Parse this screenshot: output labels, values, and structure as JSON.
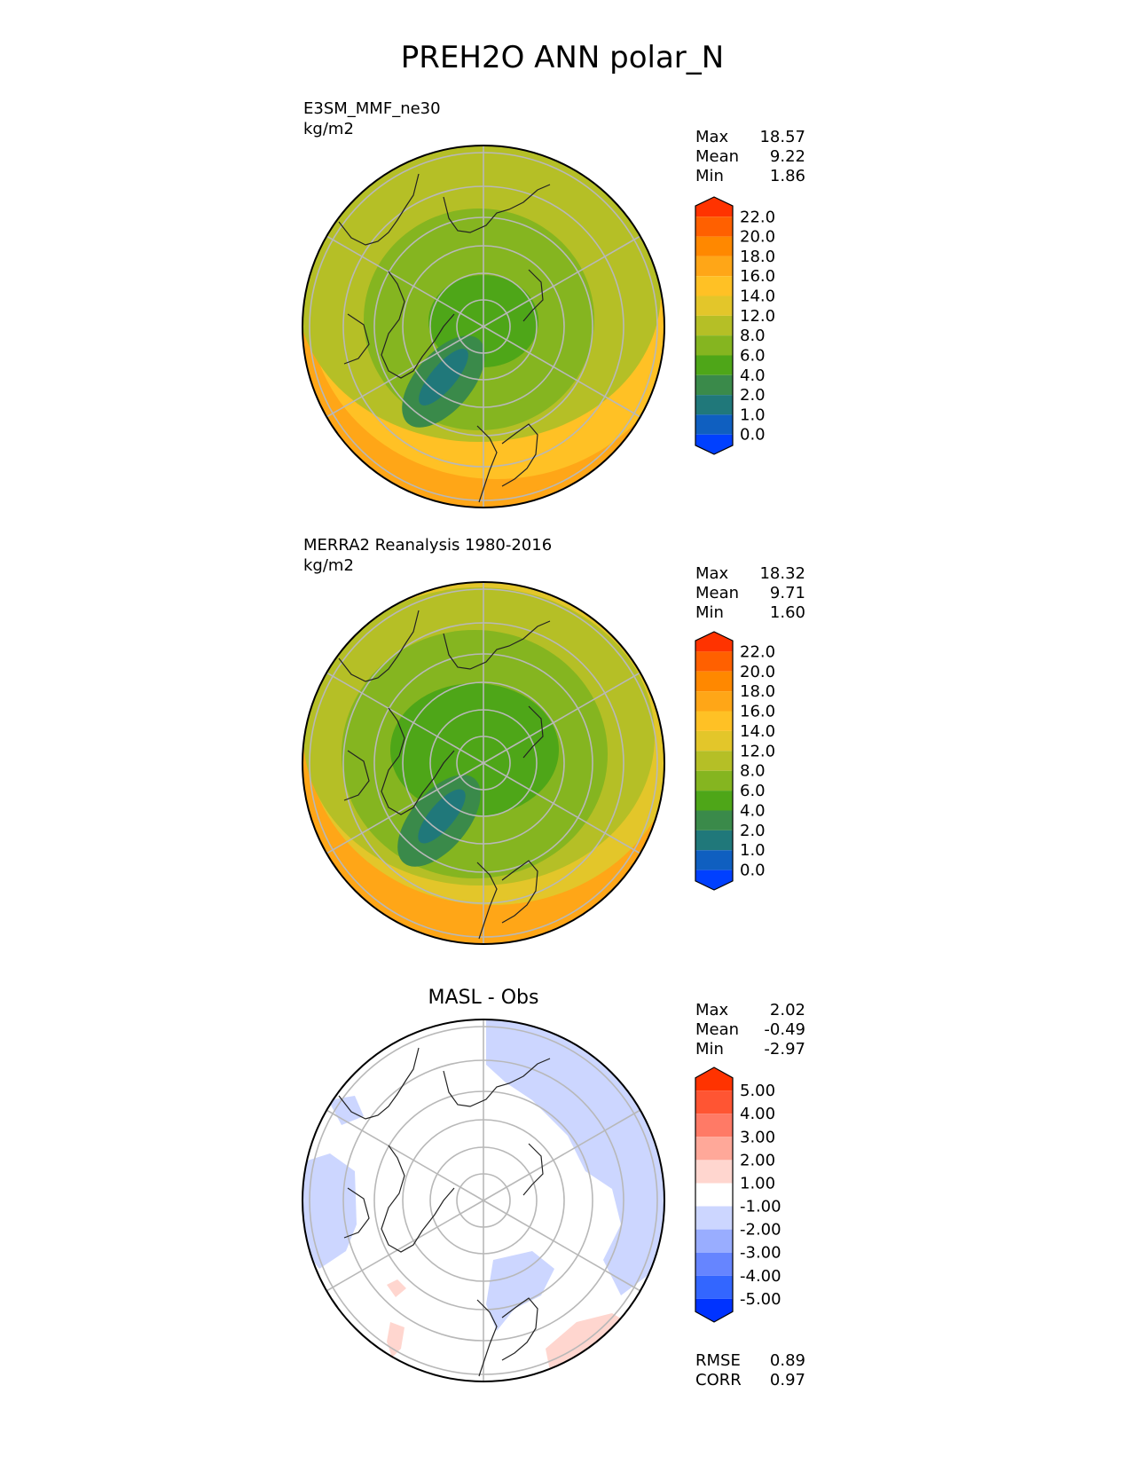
{
  "title": "PREH2O ANN polar_N",
  "chart_data": [
    {
      "type": "heatmap",
      "projection": "north polar stereographic",
      "name": "E3SM_MMF_ne30",
      "units": "kg/m2",
      "stats": [
        {
          "label": "Max",
          "value": "18.57"
        },
        {
          "label": "Mean",
          "value": "9.22"
        },
        {
          "label": "Min",
          "value": "1.86"
        }
      ],
      "colorbar_levels": [
        "22.0",
        "20.0",
        "18.0",
        "16.0",
        "14.0",
        "12.0",
        "8.0",
        "6.0",
        "4.0",
        "2.0",
        "1.0",
        "0.0"
      ],
      "colorbar_colors": [
        "#ff3300",
        "#ff6000",
        "#ff8800",
        "#ffa617",
        "#ffc125",
        "#e3c62a",
        "#b5bf26",
        "#85b520",
        "#4ea618",
        "#3a8a4a",
        "#20787a",
        "#0f5fc0",
        "#0040ff"
      ],
      "field_colors": {
        "outer": "#ffa617",
        "belt": "#ffc125",
        "mid": "#b5bf26",
        "inner": "#85b520",
        "core": "#4ea618",
        "greenland": "#3a8a4a",
        "greenland_core": "#20787a"
      }
    },
    {
      "type": "heatmap",
      "projection": "north polar stereographic",
      "name": "MERRA2 Reanalysis 1980-2016",
      "units": "kg/m2",
      "stats": [
        {
          "label": "Max",
          "value": "18.32"
        },
        {
          "label": "Mean",
          "value": "9.71"
        },
        {
          "label": "Min",
          "value": "1.60"
        }
      ],
      "colorbar_levels": [
        "22.0",
        "20.0",
        "18.0",
        "16.0",
        "14.0",
        "12.0",
        "8.0",
        "6.0",
        "4.0",
        "2.0",
        "1.0",
        "0.0"
      ],
      "colorbar_colors": [
        "#ff3300",
        "#ff6000",
        "#ff8800",
        "#ffa617",
        "#ffc125",
        "#e3c62a",
        "#b5bf26",
        "#85b520",
        "#4ea618",
        "#3a8a4a",
        "#20787a",
        "#0f5fc0",
        "#0040ff"
      ],
      "field_colors": {
        "outer": "#ffa617",
        "belt": "#e3c62a",
        "mid": "#b5bf26",
        "inner": "#85b520",
        "core": "#4ea618",
        "greenland": "#3a8a4a",
        "greenland_core": "#20787a"
      }
    },
    {
      "type": "heatmap",
      "projection": "north polar stereographic",
      "name": "MASL - Obs",
      "units": "",
      "stats": [
        {
          "label": "Max",
          "value": "2.02"
        },
        {
          "label": "Mean",
          "value": "-0.49"
        },
        {
          "label": "Min",
          "value": "-2.97"
        }
      ],
      "metrics": [
        {
          "label": "RMSE",
          "value": "0.89"
        },
        {
          "label": "CORR",
          "value": "0.97"
        }
      ],
      "colorbar_levels": [
        "5.00",
        "4.00",
        "3.00",
        "2.00",
        "1.00",
        "-1.00",
        "-2.00",
        "-3.00",
        "-4.00",
        "-5.00"
      ],
      "colorbar_colors": [
        "#ff3300",
        "#ff5533",
        "#ff7a66",
        "#ffa899",
        "#ffd6cf",
        "#ffffff",
        "#ccd6ff",
        "#99adff",
        "#6685ff",
        "#3366ff",
        "#0033ff"
      ],
      "field_colors": {
        "outer": "#ffffff",
        "negative": "#ccd6ff",
        "positive": "#ffd6cf"
      }
    }
  ]
}
